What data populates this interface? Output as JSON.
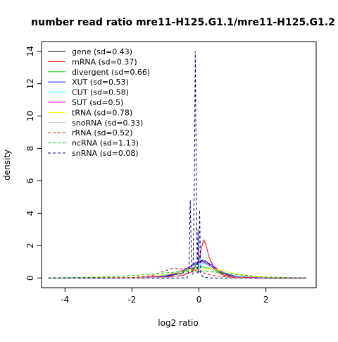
{
  "chart_data": {
    "type": "line",
    "title": "number read ratio mre11-H125.G1.1/mre11-H125.G1.2",
    "xlabel": "log2 ratio",
    "ylabel": "density",
    "xlim": [
      -4.7,
      3.5
    ],
    "ylim": [
      -0.6,
      14.6
    ],
    "x_ticks": [
      -4,
      -2,
      0,
      2
    ],
    "y_ticks": [
      0,
      2,
      4,
      6,
      8,
      10,
      12,
      14
    ],
    "grid": false,
    "legend_position": "top-left",
    "series": [
      {
        "name": "gene (sd=0.43)",
        "color": "#000000",
        "dash": "solid",
        "points": [
          [
            -4.5,
            0
          ],
          [
            -2,
            0.01
          ],
          [
            -1,
            0.08
          ],
          [
            -0.5,
            0.3
          ],
          [
            -0.2,
            0.7
          ],
          [
            0,
            1.0
          ],
          [
            0.1,
            1.1
          ],
          [
            0.2,
            1.05
          ],
          [
            0.35,
            0.75
          ],
          [
            0.6,
            0.35
          ],
          [
            1,
            0.1
          ],
          [
            2,
            0.01
          ],
          [
            3.2,
            0
          ]
        ]
      },
      {
        "name": "mRNA (sd=0.37)",
        "color": "#ff0000",
        "dash": "solid",
        "points": [
          [
            -4.5,
            0
          ],
          [
            -2,
            0.01
          ],
          [
            -1,
            0.05
          ],
          [
            -0.5,
            0.15
          ],
          [
            -0.2,
            0.4
          ],
          [
            0,
            1.1
          ],
          [
            0.08,
            1.9
          ],
          [
            0.14,
            2.35
          ],
          [
            0.2,
            2.1
          ],
          [
            0.3,
            1.3
          ],
          [
            0.45,
            0.6
          ],
          [
            0.7,
            0.2
          ],
          [
            1,
            0.06
          ],
          [
            2,
            0.01
          ],
          [
            3.2,
            0
          ]
        ]
      },
      {
        "name": "divergent (sd=0.66)",
        "color": "#00cd00",
        "dash": "solid",
        "points": [
          [
            -4.5,
            0
          ],
          [
            -2,
            0.02
          ],
          [
            -1.2,
            0.12
          ],
          [
            -0.6,
            0.35
          ],
          [
            -0.2,
            0.6
          ],
          [
            0.1,
            0.7
          ],
          [
            0.4,
            0.55
          ],
          [
            0.8,
            0.25
          ],
          [
            1.2,
            0.08
          ],
          [
            2,
            0.01
          ],
          [
            3.2,
            0
          ]
        ]
      },
      {
        "name": "XUT (sd=0.53)",
        "color": "#0000ff",
        "dash": "solid",
        "points": [
          [
            -4.5,
            0
          ],
          [
            -2,
            0.01
          ],
          [
            -1,
            0.1
          ],
          [
            -0.5,
            0.4
          ],
          [
            -0.1,
            0.95
          ],
          [
            0.1,
            1.05
          ],
          [
            0.35,
            0.85
          ],
          [
            0.7,
            0.35
          ],
          [
            1.1,
            0.08
          ],
          [
            2,
            0.01
          ],
          [
            3.2,
            0
          ]
        ]
      },
      {
        "name": "CUT (sd=0.58)",
        "color": "#00ffff",
        "dash": "solid",
        "points": [
          [
            -4.5,
            0
          ],
          [
            -2,
            0.02
          ],
          [
            -1,
            0.15
          ],
          [
            -0.5,
            0.45
          ],
          [
            -0.1,
            0.8
          ],
          [
            0.15,
            0.9
          ],
          [
            0.45,
            0.65
          ],
          [
            0.8,
            0.3
          ],
          [
            1.2,
            0.08
          ],
          [
            2,
            0.01
          ],
          [
            3.2,
            0
          ]
        ]
      },
      {
        "name": "SUT (sd=0.5)",
        "color": "#ff00ff",
        "dash": "solid",
        "points": [
          [
            -4.5,
            0
          ],
          [
            -2,
            0.01
          ],
          [
            -1,
            0.12
          ],
          [
            -0.5,
            0.45
          ],
          [
            -0.1,
            0.9
          ],
          [
            0.12,
            1.0
          ],
          [
            0.4,
            0.7
          ],
          [
            0.75,
            0.3
          ],
          [
            1.1,
            0.07
          ],
          [
            2,
            0.01
          ],
          [
            3.2,
            0
          ]
        ]
      },
      {
        "name": "tRNA (sd=0.78)",
        "color": "#ffff00",
        "dash": "solid",
        "points": [
          [
            -4.5,
            0
          ],
          [
            -2,
            0.03
          ],
          [
            -1.2,
            0.15
          ],
          [
            -0.6,
            0.35
          ],
          [
            -0.2,
            0.5
          ],
          [
            0.2,
            0.6
          ],
          [
            0.6,
            0.5
          ],
          [
            1,
            0.3
          ],
          [
            1.5,
            0.1
          ],
          [
            2.2,
            0.02
          ],
          [
            3.2,
            0
          ]
        ]
      },
      {
        "name": "snoRNA (sd=0.33)",
        "color": "#bebebe",
        "dash": "solid",
        "points": [
          [
            -4.5,
            0
          ],
          [
            -2,
            0.01
          ],
          [
            -0.8,
            0.05
          ],
          [
            -0.4,
            0.3
          ],
          [
            -0.1,
            0.9
          ],
          [
            0.05,
            1.2
          ],
          [
            0.2,
            1.0
          ],
          [
            0.45,
            0.4
          ],
          [
            0.8,
            0.08
          ],
          [
            1.5,
            0.01
          ],
          [
            3.2,
            0
          ]
        ]
      },
      {
        "name": "rRNA (sd=0.52)",
        "color": "#ff0000",
        "dash": "dashed",
        "points": [
          [
            -4.5,
            0
          ],
          [
            -2,
            0.02
          ],
          [
            -1.4,
            0.15
          ],
          [
            -1,
            0.45
          ],
          [
            -0.75,
            0.62
          ],
          [
            -0.5,
            0.55
          ],
          [
            -0.3,
            0.65
          ],
          [
            -0.15,
            0.5
          ],
          [
            0.1,
            0.35
          ],
          [
            0.4,
            0.15
          ],
          [
            1,
            0.03
          ],
          [
            2,
            0
          ],
          [
            3.2,
            0
          ]
        ]
      },
      {
        "name": "ncRNA (sd=1.13)",
        "color": "#00cd00",
        "dash": "dashed",
        "points": [
          [
            -4.5,
            0.01
          ],
          [
            -3,
            0.05
          ],
          [
            -2,
            0.15
          ],
          [
            -1.2,
            0.28
          ],
          [
            -0.5,
            0.4
          ],
          [
            0,
            0.42
          ],
          [
            0.6,
            0.35
          ],
          [
            1.2,
            0.2
          ],
          [
            2,
            0.06
          ],
          [
            2.8,
            0.02
          ],
          [
            3.2,
            0.01
          ]
        ]
      },
      {
        "name": "snRNA (sd=0.08)",
        "color": "#00008b",
        "dash": "dashed",
        "points": [
          [
            -4.5,
            0
          ],
          [
            -0.35,
            0
          ],
          [
            -0.3,
            0.6
          ],
          [
            -0.26,
            4.8
          ],
          [
            -0.22,
            0.6
          ],
          [
            -0.18,
            0.2
          ],
          [
            -0.14,
            5.5
          ],
          [
            -0.11,
            14
          ],
          [
            -0.08,
            6
          ],
          [
            -0.05,
            0.3
          ],
          [
            -0.03,
            3.0
          ],
          [
            -0.01,
            0.3
          ],
          [
            0.02,
            4.2
          ],
          [
            0.05,
            0.3
          ],
          [
            0.12,
            0.05
          ],
          [
            0.3,
            0
          ],
          [
            3.2,
            0
          ]
        ]
      }
    ]
  }
}
